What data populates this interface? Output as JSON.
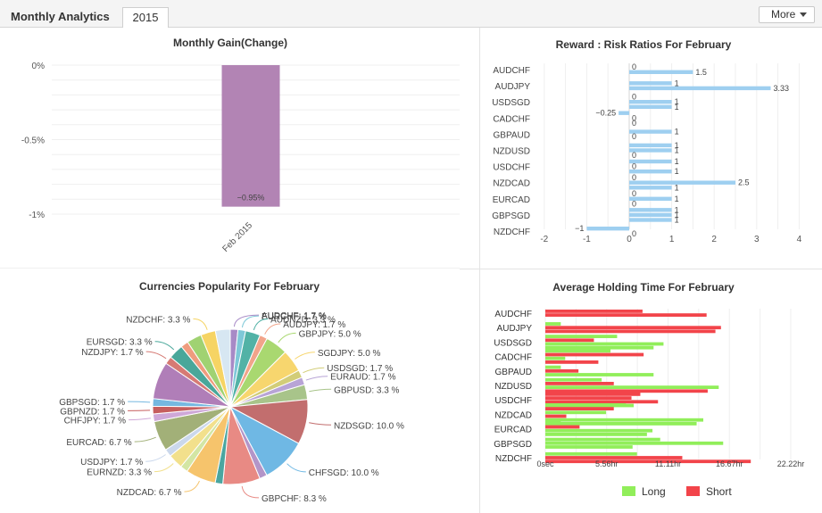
{
  "header": {
    "title": "Monthly Analytics",
    "tab_label": "2015",
    "more_label": "More"
  },
  "colors": {
    "gain_bar": "#b284b4",
    "rr_bar": "#9ecff0",
    "long": "#91ee5a",
    "short": "#f2444a"
  },
  "chart_data": [
    {
      "type": "bar",
      "title": "Monthly Gain(Change)",
      "categories": [
        "Feb 2015"
      ],
      "values": [
        -0.95
      ],
      "data_labels": [
        "−0.95%"
      ],
      "yticks": [
        "0%",
        "-0.5%",
        "-1%"
      ],
      "ylim": [
        -1.0,
        0
      ],
      "grid": true
    },
    {
      "type": "bar",
      "orientation": "horizontal",
      "title": "Reward : Risk Ratios For February",
      "categories": [
        "AUDCHF",
        "AUDJPY",
        "USDSGD",
        "CADCHF",
        "GBPAUD",
        "NZDUSD",
        "USDCHF",
        "NZDCAD",
        "EURCAD",
        "GBPSGD",
        "NZDCHF"
      ],
      "bars": [
        {
          "category": "AUDCHF",
          "value": 0,
          "label": "0"
        },
        {
          "category": "AUDCHF",
          "value": 1.5,
          "label": "1.5"
        },
        {
          "category": "AUDJPY",
          "value": 1,
          "label": "1"
        },
        {
          "category": "AUDJPY",
          "value": 3.33,
          "label": "3.33"
        },
        {
          "category": "USDSGD",
          "value": 0,
          "label": "0"
        },
        {
          "category": "USDSGD",
          "value": 1,
          "label": "1"
        },
        {
          "category": "USDSGD",
          "value": 1,
          "label": "1"
        },
        {
          "category": "CADCHF",
          "value": -0.25,
          "label": "−0.25"
        },
        {
          "category": "CADCHF",
          "value": 0,
          "label": "0"
        },
        {
          "category": "CADCHF",
          "value": 0,
          "label": "0"
        },
        {
          "category": "GBPAUD",
          "value": 1,
          "label": "1"
        },
        {
          "category": "GBPAUD",
          "value": 0,
          "label": "0"
        },
        {
          "category": "NZDUSD",
          "value": 1,
          "label": "1"
        },
        {
          "category": "NZDUSD",
          "value": 1,
          "label": "1"
        },
        {
          "category": "NZDUSD",
          "value": 0,
          "label": "0"
        },
        {
          "category": "USDCHF",
          "value": 1,
          "label": "1"
        },
        {
          "category": "USDCHF",
          "value": 0,
          "label": "0"
        },
        {
          "category": "USDCHF",
          "value": 1,
          "label": "1"
        },
        {
          "category": "NZDCAD",
          "value": 0,
          "label": "0"
        },
        {
          "category": "NZDCAD",
          "value": 2.5,
          "label": "2.5"
        },
        {
          "category": "NZDCAD",
          "value": 1,
          "label": "1"
        },
        {
          "category": "EURCAD",
          "value": 0,
          "label": "0"
        },
        {
          "category": "EURCAD",
          "value": 1,
          "label": "1"
        },
        {
          "category": "EURCAD",
          "value": 0,
          "label": "0"
        },
        {
          "category": "GBPSGD",
          "value": 1,
          "label": "1"
        },
        {
          "category": "GBPSGD",
          "value": 1,
          "label": "1"
        },
        {
          "category": "GBPSGD",
          "value": 1,
          "label": "1"
        },
        {
          "category": "NZDCHF",
          "value": -1,
          "label": "−1"
        },
        {
          "category": "NZDCHF",
          "value": 0,
          "label": "0"
        }
      ],
      "xticks": [
        "-2",
        "-1",
        "0",
        "1",
        "2",
        "3",
        "4"
      ],
      "xlim": [
        -2,
        4
      ],
      "grid": true
    },
    {
      "type": "pie",
      "title": "Currencies Popularity For February",
      "slices": [
        {
          "label": "AUDCHF: 1.7 %",
          "value": 1.7,
          "color": "#a78ac6"
        },
        {
          "label": "EURCHF: 1.7 %",
          "value": 1.7,
          "color": "#7ec8d8"
        },
        {
          "label": "AUDNZD: 3.3 %",
          "value": 3.3,
          "color": "#52b2a6"
        },
        {
          "label": "AUDJPY: 1.7 %",
          "value": 1.7,
          "color": "#f2a48a"
        },
        {
          "label": "GBPJPY: 5.0 %",
          "value": 5.0,
          "color": "#a9d870"
        },
        {
          "label": "SGDJPY: 5.0 %",
          "value": 5.0,
          "color": "#f7d66e"
        },
        {
          "label": "USDSGD: 1.7 %",
          "value": 1.7,
          "color": "#d2cd78"
        },
        {
          "label": "EURAUD: 1.7 %",
          "value": 1.7,
          "color": "#b8a4d6"
        },
        {
          "label": "GBPUSD: 3.3 %",
          "value": 3.3,
          "color": "#a8c48a"
        },
        {
          "label": "NZDSGD: 10.0 %",
          "value": 10.0,
          "color": "#c26e6e"
        },
        {
          "label": "CHFSGD: 10.0 %",
          "value": 10.0,
          "color": "#6fb8e4"
        },
        {
          "label": "",
          "value": 1.7,
          "color": "#b395c8"
        },
        {
          "label": "GBPCHF: 8.3 %",
          "value": 8.3,
          "color": "#e88a84"
        },
        {
          "label": "",
          "value": 1.7,
          "color": "#4aa6a0"
        },
        {
          "label": "NZDCAD: 6.7 %",
          "value": 6.7,
          "color": "#f6c46c"
        },
        {
          "label": "",
          "value": 1.7,
          "color": "#d3e6a4"
        },
        {
          "label": "EURNZD: 3.3 %",
          "value": 3.3,
          "color": "#f2e08c"
        },
        {
          "label": "USDJPY: 1.7 %",
          "value": 1.7,
          "color": "#cbd8ec"
        },
        {
          "label": "EURCAD: 6.7 %",
          "value": 6.7,
          "color": "#a2b078"
        },
        {
          "label": "CHFJPY: 1.7 %",
          "value": 1.7,
          "color": "#cfa8d8"
        },
        {
          "label": "GBPNZD: 1.7 %",
          "value": 1.7,
          "color": "#c65e5e"
        },
        {
          "label": "GBPSGD: 1.7 %",
          "value": 1.7,
          "color": "#76b8e0"
        },
        {
          "label": "",
          "value": 8.3,
          "color": "#b07eb8"
        },
        {
          "label": "NZDJPY: 1.7 %",
          "value": 1.7,
          "color": "#d67a74"
        },
        {
          "label": "EURSGD: 3.3 %",
          "value": 3.3,
          "color": "#49a79a"
        },
        {
          "label": "",
          "value": 1.7,
          "color": "#ef9c7e"
        },
        {
          "label": "",
          "value": 3.3,
          "color": "#a0d272"
        },
        {
          "label": "NZDCHF: 3.3 %",
          "value": 3.3,
          "color": "#f6d464"
        },
        {
          "label": "",
          "value": 3.3,
          "color": "#d7e7f2"
        }
      ]
    },
    {
      "type": "bar",
      "orientation": "horizontal",
      "title": "Average Holding Time For February",
      "categories": [
        "AUDCHF",
        "AUDJPY",
        "USDSGD",
        "CADCHF",
        "GBPAUD",
        "NZDUSD",
        "USDCHF",
        "NZDCAD",
        "EURCAD",
        "GBPSGD",
        "NZDCHF"
      ],
      "bars": [
        {
          "category": "AUDCHF",
          "series": "Short",
          "hours": 8.8
        },
        {
          "category": "AUDCHF",
          "series": "Short",
          "hours": 14.6
        },
        {
          "category": "AUDJPY",
          "series": "Long",
          "hours": 1.4
        },
        {
          "category": "AUDJPY",
          "series": "Short",
          "hours": 15.9
        },
        {
          "category": "AUDJPY",
          "series": "Short",
          "hours": 15.4
        },
        {
          "category": "USDSGD",
          "series": "Long",
          "hours": 6.5
        },
        {
          "category": "USDSGD",
          "series": "Short",
          "hours": 4.4
        },
        {
          "category": "USDSGD",
          "series": "Long",
          "hours": 10.7
        },
        {
          "category": "USDSGD",
          "series": "Long",
          "hours": 9.8
        },
        {
          "category": "CADCHF",
          "series": "Long",
          "hours": 5.9
        },
        {
          "category": "CADCHF",
          "series": "Short",
          "hours": 8.9
        },
        {
          "category": "CADCHF",
          "series": "Long",
          "hours": 1.8
        },
        {
          "category": "CADCHF",
          "series": "Short",
          "hours": 4.8
        },
        {
          "category": "GBPAUD",
          "series": "Long",
          "hours": 1.4
        },
        {
          "category": "GBPAUD",
          "series": "Short",
          "hours": 3.0
        },
        {
          "category": "GBPAUD",
          "series": "Long",
          "hours": 9.8
        },
        {
          "category": "NZDUSD",
          "series": "Long",
          "hours": 5.1
        },
        {
          "category": "NZDUSD",
          "series": "Short",
          "hours": 6.2
        },
        {
          "category": "NZDUSD",
          "series": "Long",
          "hours": 15.7
        },
        {
          "category": "NZDUSD",
          "series": "Short",
          "hours": 14.7
        },
        {
          "category": "USDCHF",
          "series": "Short",
          "hours": 8.6
        },
        {
          "category": "USDCHF",
          "series": "Short",
          "hours": 7.8
        },
        {
          "category": "USDCHF",
          "series": "Short",
          "hours": 10.2
        },
        {
          "category": "USDCHF",
          "series": "Long",
          "hours": 8.0
        },
        {
          "category": "NZDCAD",
          "series": "Long",
          "hours": 7.3
        },
        {
          "category": "NZDCAD",
          "series": "Short",
          "hours": 6.2
        },
        {
          "category": "NZDCAD",
          "series": "Long",
          "hours": 5.5
        },
        {
          "category": "NZDCAD",
          "series": "Short",
          "hours": 1.9
        },
        {
          "category": "NZDCAD",
          "series": "Long",
          "hours": 14.3
        },
        {
          "category": "NZDCAD",
          "series": "Long",
          "hours": 13.7
        },
        {
          "category": "EURCAD",
          "series": "Long",
          "hours": 1.4
        },
        {
          "category": "EURCAD",
          "series": "Short",
          "hours": 3.1
        },
        {
          "category": "EURCAD",
          "series": "Long",
          "hours": 9.7
        },
        {
          "category": "EURCAD",
          "series": "Long",
          "hours": 9.2
        },
        {
          "category": "GBPSGD",
          "series": "Long",
          "hours": 10.4
        },
        {
          "category": "GBPSGD",
          "series": "Long",
          "hours": 16.1
        },
        {
          "category": "GBPSGD",
          "series": "Long",
          "hours": 7.9
        },
        {
          "category": "NZDCHF",
          "series": "Long",
          "hours": 8.3
        },
        {
          "category": "NZDCHF",
          "series": "Short",
          "hours": 12.4
        },
        {
          "category": "NZDCHF",
          "series": "Short",
          "hours": 18.6
        }
      ],
      "xticks": [
        "0sec",
        "5.56hr",
        "11.11hr",
        "16.67hr",
        "22.22hr"
      ],
      "xlim": [
        0,
        22.22
      ],
      "legend": {
        "position": "bottom",
        "items": [
          "Long",
          "Short"
        ]
      }
    }
  ]
}
